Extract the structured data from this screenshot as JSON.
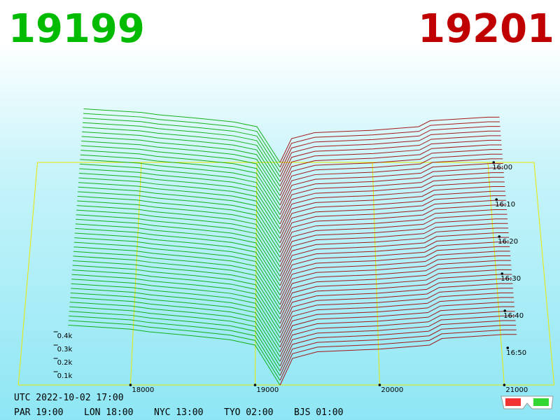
{
  "header": {
    "bid": "19199",
    "ask": "19201"
  },
  "chart_data": {
    "type": "depth3d",
    "bids": {
      "color": "#00aa00",
      "prices": [
        17500,
        18000,
        18150,
        18500,
        18800,
        19000,
        19100,
        19199
      ],
      "depth": [
        450,
        420,
        400,
        370,
        340,
        300,
        150,
        0
      ]
    },
    "asks": {
      "color": "#a00000",
      "prices": [
        19201,
        19300,
        19500,
        20000,
        20400,
        20500,
        21000,
        21100
      ],
      "depth": [
        0,
        200,
        250,
        270,
        300,
        350,
        380,
        380
      ]
    },
    "xticks": [
      18000,
      19000,
      20000,
      21000
    ],
    "yticks": [
      {
        "value": 100,
        "label": "0.1k"
      },
      {
        "value": 200,
        "label": "0.2k"
      },
      {
        "value": 300,
        "label": "0.3k"
      },
      {
        "value": 400,
        "label": "0.4k"
      }
    ],
    "time_ticks": [
      "16:00",
      "16:10",
      "16:20",
      "16:30",
      "16:40",
      "16:50"
    ]
  },
  "footer": {
    "utc": "UTC 2022-10-02 17:00",
    "clocks": [
      "PAR 19:00",
      "LON 18:00",
      "NYC 13:00",
      "TYO 02:00",
      "BJS 01:00"
    ]
  }
}
